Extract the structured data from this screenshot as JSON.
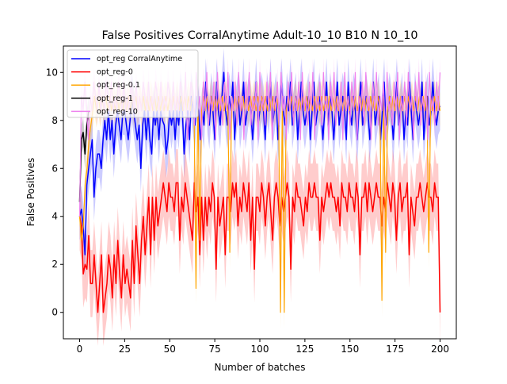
{
  "chart_data": {
    "type": "line",
    "title": "False Positives CorralAnytime Adult-10_10 B10 N 10_10",
    "xlabel": "Number of batches",
    "ylabel": "False Positives",
    "xlim": [
      -9,
      209
    ],
    "ylim": [
      -1.1,
      11.1
    ],
    "xticks": [
      0,
      25,
      50,
      75,
      100,
      125,
      150,
      175,
      200
    ],
    "yticks": [
      0,
      2,
      4,
      6,
      8,
      10
    ],
    "grid": false,
    "legend_placement": "top-left",
    "series": [
      {
        "name": "opt_reg CorralAnytime",
        "color": "#0000ff",
        "band_color": "#0000ff",
        "band_width": 1.0,
        "values": [
          4.0,
          4.3,
          3.6,
          2.4,
          5.3,
          6.0,
          6.6,
          7.2,
          4.8,
          6.0,
          6.6,
          6.6,
          6.0,
          7.2,
          8.0,
          7.2,
          8.4,
          7.2,
          8.0,
          6.6,
          7.8,
          8.4,
          7.8,
          7.2,
          8.4,
          8.4,
          7.8,
          7.2,
          8.0,
          9.0,
          8.4,
          7.8,
          7.2,
          7.8,
          6.0,
          7.8,
          8.4,
          7.2,
          8.4,
          7.2,
          6.6,
          8.4,
          7.8,
          8.4,
          7.2,
          8.4,
          8.0,
          7.8,
          6.6,
          7.2,
          8.4,
          7.8,
          8.4,
          7.2,
          8.4,
          7.8,
          9.0,
          8.4,
          6.6,
          7.8,
          8.4,
          7.2,
          9.0,
          8.4,
          7.8,
          9.0,
          8.4,
          7.2,
          8.4,
          7.8,
          9.6,
          8.4,
          7.8,
          9.0,
          8.4,
          7.2,
          9.6,
          8.4,
          7.8,
          9.0,
          10.0,
          8.4,
          7.8,
          9.0,
          8.4,
          9.6,
          7.2,
          8.4,
          9.0,
          7.8,
          8.4,
          9.6,
          7.8,
          8.4,
          9.0,
          8.4,
          7.2,
          8.4,
          9.6,
          7.8,
          8.4,
          9.0,
          8.4,
          7.2,
          9.0,
          8.4,
          9.6,
          7.8,
          8.4,
          9.0,
          7.2,
          8.4,
          9.6,
          8.4,
          7.8,
          9.0,
          8.4,
          9.6,
          7.8,
          8.4,
          9.0,
          7.2,
          8.4,
          9.6,
          8.4,
          7.8,
          8.4,
          9.0,
          7.2,
          8.4,
          9.6,
          7.8,
          8.4,
          9.0,
          8.4,
          7.2,
          8.4,
          9.6,
          7.8,
          9.0,
          8.4,
          7.2,
          8.4,
          9.6,
          7.8,
          8.4,
          9.0,
          8.4,
          7.2,
          9.6,
          8.4,
          7.8,
          9.0,
          8.4,
          7.2,
          8.4,
          9.6,
          7.8,
          8.4,
          9.0,
          8.4,
          7.2,
          8.4,
          9.6,
          7.8,
          8.4,
          9.0,
          7.2,
          8.4,
          9.6,
          7.8,
          8.4,
          9.0,
          8.4,
          7.2,
          8.4,
          9.6,
          7.8,
          8.4,
          9.0,
          7.2,
          8.4,
          7.8,
          9.6,
          8.4,
          7.2,
          9.0,
          8.4,
          7.8,
          8.4,
          9.6,
          7.2,
          8.4,
          9.0,
          7.8,
          8.4,
          9.6,
          8.4,
          7.8,
          8.4,
          8.6
        ]
      },
      {
        "name": "opt_reg-0",
        "color": "#ff0000",
        "band_color": "#ff0000",
        "band_width": 1.4,
        "values": [
          4.0,
          3.6,
          1.6,
          2.0,
          1.8,
          3.2,
          1.2,
          1.2,
          2.4,
          1.2,
          0.0,
          1.2,
          2.4,
          0.0,
          0.6,
          1.2,
          2.4,
          1.8,
          0.6,
          2.4,
          1.2,
          3.0,
          1.6,
          0.6,
          2.4,
          1.2,
          1.8,
          1.2,
          0.6,
          3.0,
          1.2,
          3.6,
          2.4,
          1.2,
          3.0,
          4.0,
          2.4,
          3.6,
          4.8,
          2.4,
          4.8,
          3.0,
          4.8,
          3.6,
          4.2,
          4.8,
          5.4,
          4.8,
          4.2,
          5.4,
          4.8,
          4.8,
          4.2,
          5.4,
          5.4,
          3.0,
          4.8,
          4.2,
          5.4,
          4.8,
          4.2,
          3.6,
          3.0,
          5.4,
          4.2,
          4.8,
          2.4,
          4.8,
          3.0,
          4.8,
          3.6,
          4.8,
          4.2,
          5.4,
          4.8,
          1.8,
          4.8,
          3.6,
          4.2,
          4.8,
          2.4,
          4.8,
          4.8,
          4.2,
          5.4,
          4.8,
          5.4,
          3.6,
          4.8,
          4.2,
          5.4,
          4.8,
          4.2,
          5.4,
          3.0,
          4.8,
          1.8,
          4.8,
          4.8,
          4.2,
          5.4,
          4.8,
          3.6,
          4.8,
          5.4,
          4.2,
          3.0,
          4.8,
          5.4,
          4.8,
          3.6,
          4.8,
          4.2,
          4.8,
          5.4,
          4.8,
          1.8,
          4.8,
          4.2,
          5.4,
          4.8,
          4.8,
          4.2,
          3.6,
          4.8,
          4.2,
          5.4,
          4.8,
          4.8,
          5.4,
          4.8,
          4.8,
          3.0,
          4.8,
          4.2,
          4.8,
          5.4,
          4.8,
          5.4,
          4.8,
          4.8,
          4.2,
          4.8,
          3.6,
          5.4,
          4.8,
          4.8,
          4.2,
          5.4,
          4.8,
          4.8,
          4.2,
          5.4,
          4.8,
          2.4,
          4.8,
          4.8,
          5.4,
          4.2,
          5.4,
          4.8,
          4.2,
          4.8,
          5.4,
          4.8,
          4.8,
          3.6,
          4.8,
          4.2,
          5.4,
          4.8,
          4.2,
          5.4,
          4.8,
          3.0,
          4.8,
          5.4,
          4.2,
          4.8,
          4.8,
          5.4,
          2.4,
          4.8,
          4.2,
          3.6,
          4.8,
          4.8,
          5.4,
          4.8,
          4.2,
          4.8,
          5.4,
          4.8,
          4.8,
          4.2,
          5.4,
          4.8,
          4.8,
          0.0
        ]
      },
      {
        "name": "opt_reg-0.1",
        "color": "#ffa500",
        "band_color": "#ffa500",
        "band_width": 0.7,
        "values": [
          4.0,
          3.0,
          3.6,
          5.4,
          6.0,
          7.2,
          7.8,
          8.4,
          9.0,
          8.4,
          9.0,
          8.4,
          9.0,
          8.4,
          9.0,
          8.4,
          9.0,
          8.4,
          9.0,
          8.4,
          9.0,
          8.4,
          9.0,
          8.4,
          9.0,
          8.4,
          9.0,
          8.4,
          9.0,
          8.4,
          9.0,
          8.4,
          9.0,
          8.4,
          9.0,
          8.4,
          9.0,
          8.4,
          9.0,
          8.4,
          9.0,
          8.4,
          9.0,
          8.4,
          9.0,
          8.4,
          9.0,
          8.4,
          9.0,
          8.4,
          9.0,
          8.4,
          9.0,
          8.4,
          9.0,
          8.4,
          9.0,
          8.4,
          9.0,
          8.4,
          9.0,
          8.4,
          1.0,
          9.0,
          3.0,
          8.4,
          9.0,
          8.4,
          9.0,
          8.4,
          9.0,
          8.4,
          9.0,
          8.4,
          9.0,
          8.4,
          9.0,
          8.4,
          9.0,
          8.4,
          2.5,
          9.0,
          8.4,
          9.0,
          8.4,
          9.0,
          8.4,
          9.0,
          8.4,
          9.0,
          8.4,
          9.0,
          8.4,
          9.0,
          8.4,
          9.0,
          8.4,
          9.0,
          8.4,
          9.0,
          8.4,
          9.0,
          8.4,
          9.0,
          8.4,
          9.0,
          8.4,
          0.0,
          9.0,
          0.0,
          8.4,
          9.0,
          8.4,
          9.0,
          8.4,
          9.0,
          8.4,
          9.0,
          8.4,
          9.0,
          8.4,
          9.0,
          8.4,
          9.0,
          8.4,
          9.0,
          8.4,
          9.0,
          8.4,
          9.0,
          8.4,
          9.0,
          8.4,
          9.0,
          8.4,
          9.0,
          8.4,
          9.0,
          8.4,
          9.0,
          8.4,
          9.0,
          8.4,
          9.0,
          8.4,
          9.0,
          8.4,
          9.0,
          8.4,
          9.0,
          8.4,
          9.0,
          8.4,
          9.0,
          8.4,
          9.0,
          8.4,
          9.0,
          8.4,
          9.0,
          8.4,
          0.5,
          9.0,
          2.5,
          8.4,
          9.0,
          8.4,
          9.0,
          8.4,
          9.0,
          8.4,
          9.0,
          8.4,
          9.0,
          8.4,
          9.0,
          8.4,
          9.0,
          8.4,
          9.0,
          8.4,
          9.0,
          8.4,
          9.0,
          8.4,
          9.0,
          2.5,
          9.0,
          8.4,
          9.0,
          8.4,
          9.0,
          8.4
        ]
      },
      {
        "name": "opt_reg-1",
        "color": "#000000",
        "band_color": "#000000",
        "band_width": 0.6,
        "values": [
          4.6,
          7.2,
          7.5,
          6.6,
          7.8,
          8.4
        ]
      },
      {
        "name": "opt_reg-10",
        "color": "#ee82ee",
        "band_color": "#ee82ee",
        "band_width": 0.6,
        "values": [
          4.0,
          9.0,
          8.4,
          9.6,
          8.4,
          7.2,
          9.0,
          8.4,
          9.6,
          9.0,
          8.4,
          9.6,
          8.4,
          9.0,
          8.4,
          9.6,
          9.0,
          8.4,
          9.6,
          8.4,
          9.0,
          8.4,
          9.6,
          9.0,
          8.4,
          9.6,
          8.4,
          9.0,
          8.4,
          9.6,
          9.0,
          8.4,
          9.6,
          8.4,
          9.0,
          8.4,
          9.6,
          9.0,
          8.4,
          9.6,
          8.4,
          9.0,
          8.4,
          9.6,
          9.0,
          8.4,
          9.6,
          8.4,
          9.0,
          8.4,
          9.6,
          9.0,
          8.4,
          9.6,
          8.4,
          9.0,
          8.4,
          9.6,
          9.0,
          8.4,
          10.0,
          7.2,
          8.4,
          9.6,
          9.0,
          7.8,
          10.0,
          8.4,
          9.0,
          7.2,
          9.6,
          8.4,
          10.0,
          7.8,
          9.0,
          8.4,
          9.6,
          7.2,
          10.0,
          8.4,
          9.0,
          7.8,
          9.6,
          8.4,
          10.0,
          7.2,
          9.0,
          8.4,
          9.6,
          7.8,
          10.0,
          8.4,
          9.0,
          7.2,
          9.6,
          8.4,
          10.0,
          7.8,
          9.0,
          8.4,
          9.6,
          7.2,
          10.0,
          8.4,
          9.0,
          7.8,
          9.6,
          8.4,
          10.0,
          7.2,
          9.0,
          8.4,
          9.6,
          7.8,
          10.0,
          8.4,
          9.0,
          7.2,
          9.6,
          8.4,
          10.0,
          7.8,
          9.0,
          8.4,
          9.6,
          7.2,
          10.0,
          8.4,
          9.0,
          7.8,
          9.6,
          8.4,
          10.0,
          7.2,
          9.0,
          8.4,
          9.6,
          7.8,
          10.0,
          8.4,
          9.0,
          7.2,
          9.6,
          8.4,
          10.0,
          7.8,
          9.0,
          8.4,
          9.6,
          7.2,
          10.0,
          8.4,
          9.0,
          7.8,
          9.6,
          8.4,
          10.0,
          7.2,
          9.0,
          8.4,
          9.6,
          7.8,
          10.0,
          8.4,
          9.0,
          7.2,
          9.6,
          8.4,
          10.0,
          7.8,
          9.0,
          8.4,
          9.6,
          7.2,
          10.0,
          8.4,
          9.0,
          7.8,
          9.6,
          8.4,
          10.0,
          7.2,
          9.0,
          8.4,
          9.6,
          7.8,
          10.0,
          8.4,
          9.0,
          7.2,
          9.6,
          8.4,
          10.0,
          7.8,
          9.0,
          8.4,
          9.6,
          7.2,
          10.0,
          8.4,
          9.0,
          7.8,
          9.6,
          8.4,
          10.0
        ]
      }
    ]
  }
}
